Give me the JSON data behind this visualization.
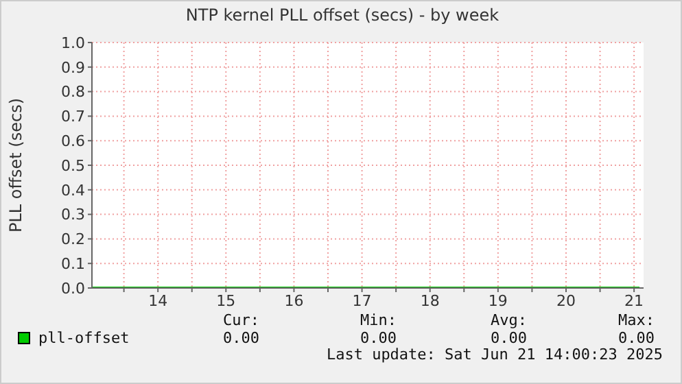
{
  "chart_data": {
    "type": "line",
    "title": "NTP kernel PLL offset (secs) - by week",
    "ylabel": "PLL offset (secs)",
    "x": [
      13.03,
      21.08
    ],
    "series": [
      {
        "name": "pll-offset",
        "color": "#00cc00",
        "values": [
          0,
          0
        ]
      }
    ],
    "xlim": [
      13.03,
      21.14
    ],
    "xticks": [
      {
        "value": 13.5,
        "label": null
      },
      14,
      {
        "value": 14.5,
        "label": null
      },
      15,
      {
        "value": 15.5,
        "label": null
      },
      16,
      {
        "value": 16.5,
        "label": null
      },
      17,
      {
        "value": 17.5,
        "label": null
      },
      18,
      {
        "value": 18.5,
        "label": null
      },
      19,
      {
        "value": 19.5,
        "label": null
      },
      20,
      {
        "value": 20.5,
        "label": null
      },
      21
    ],
    "ylim": [
      0,
      1
    ],
    "yticks": [
      {
        "value": 0,
        "label": "0.0"
      },
      {
        "value": 0.1,
        "label": "0.1"
      },
      {
        "value": 0.2,
        "label": "0.2"
      },
      {
        "value": 0.3,
        "label": "0.3"
      },
      {
        "value": 0.4,
        "label": "0.4"
      },
      {
        "value": 0.5,
        "label": "0.5"
      },
      {
        "value": 0.6,
        "label": "0.6"
      },
      {
        "value": 0.7,
        "label": "0.7"
      },
      {
        "value": 0.8,
        "label": "0.8"
      },
      {
        "value": 0.9,
        "label": "0.9"
      },
      {
        "value": 1,
        "label": "1.0"
      }
    ],
    "grid": true,
    "legend": "bottom",
    "marker": "none",
    "line_style": "solid",
    "annotations": [
      "Cur:",
      "Min:",
      "Avg:",
      "Max:",
      "0.00",
      "0.00",
      "0.00",
      "0.00",
      "Last update: Sat Jun 21 14:00:23 2025"
    ]
  }
}
